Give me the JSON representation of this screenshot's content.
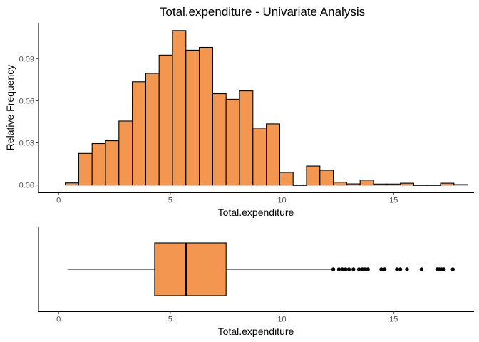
{
  "chart_data": [
    {
      "type": "histogram",
      "title": "Total.expenditure - Univariate Analysis",
      "xlabel": "Total.expenditure",
      "ylabel": "Relative Frequency",
      "xlim": [
        -0.9,
        18.6
      ],
      "ylim": [
        -0.0055,
        0.1155
      ],
      "x_ticks": [
        0,
        5,
        10,
        15
      ],
      "x_tick_labels": [
        "0",
        "5",
        "10",
        "15"
      ],
      "y_ticks": [
        0,
        0.03,
        0.06,
        0.09
      ],
      "y_tick_labels": [
        "0.00",
        "0.03",
        "0.06",
        "0.09"
      ],
      "grid": false,
      "bin_width": 0.6,
      "bins": [
        {
          "x0": 0.3,
          "x1": 0.9,
          "value": 0.0015
        },
        {
          "x0": 0.9,
          "x1": 1.5,
          "value": 0.0225
        },
        {
          "x0": 1.5,
          "x1": 2.1,
          "value": 0.0295
        },
        {
          "x0": 2.1,
          "x1": 2.7,
          "value": 0.0315
        },
        {
          "x0": 2.7,
          "x1": 3.3,
          "value": 0.0455
        },
        {
          "x0": 3.3,
          "x1": 3.9,
          "value": 0.0735
        },
        {
          "x0": 3.9,
          "x1": 4.5,
          "value": 0.0795
        },
        {
          "x0": 4.5,
          "x1": 5.1,
          "value": 0.0925
        },
        {
          "x0": 5.1,
          "x1": 5.7,
          "value": 0.11
        },
        {
          "x0": 5.7,
          "x1": 6.3,
          "value": 0.096
        },
        {
          "x0": 6.3,
          "x1": 6.9,
          "value": 0.098
        },
        {
          "x0": 6.9,
          "x1": 7.5,
          "value": 0.065
        },
        {
          "x0": 7.5,
          "x1": 8.1,
          "value": 0.061
        },
        {
          "x0": 8.1,
          "x1": 8.7,
          "value": 0.067
        },
        {
          "x0": 8.7,
          "x1": 9.3,
          "value": 0.0405
        },
        {
          "x0": 9.3,
          "x1": 9.9,
          "value": 0.0435
        },
        {
          "x0": 9.9,
          "x1": 10.5,
          "value": 0.009
        },
        {
          "x0": 10.5,
          "x1": 11.1,
          "value": 0.0
        },
        {
          "x0": 11.1,
          "x1": 11.7,
          "value": 0.0135
        },
        {
          "x0": 11.7,
          "x1": 12.3,
          "value": 0.0105
        },
        {
          "x0": 12.3,
          "x1": 12.9,
          "value": 0.002
        },
        {
          "x0": 12.9,
          "x1": 13.5,
          "value": 0.0008
        },
        {
          "x0": 13.5,
          "x1": 14.1,
          "value": 0.0035
        },
        {
          "x0": 14.1,
          "x1": 14.7,
          "value": 0.0007
        },
        {
          "x0": 14.7,
          "x1": 15.3,
          "value": 0.0007
        },
        {
          "x0": 15.3,
          "x1": 15.9,
          "value": 0.0013
        },
        {
          "x0": 15.9,
          "x1": 16.5,
          "value": 0.0
        },
        {
          "x0": 16.5,
          "x1": 17.1,
          "value": 0.0
        },
        {
          "x0": 17.1,
          "x1": 17.7,
          "value": 0.0013
        },
        {
          "x0": 17.7,
          "x1": 18.3,
          "value": 0.0003
        }
      ],
      "colors": {
        "fill": "#F29650",
        "stroke": "#000000"
      }
    },
    {
      "type": "boxplot",
      "xlabel": "Total.expenditure",
      "xlim": [
        -0.9,
        18.6
      ],
      "x_ticks": [
        0,
        5,
        10,
        15
      ],
      "x_tick_labels": [
        "0",
        "5",
        "10",
        "15"
      ],
      "grid": false,
      "whisker_low": 0.4,
      "q1": 4.3,
      "median": 5.7,
      "q3": 7.5,
      "whisker_high": 12.2,
      "outliers": [
        12.3,
        12.55,
        12.7,
        12.85,
        13.0,
        13.2,
        13.45,
        13.6,
        13.68,
        13.75,
        13.85,
        14.45,
        14.6,
        15.15,
        15.3,
        15.6,
        16.25,
        16.95,
        17.05,
        17.15,
        17.25,
        17.65
      ],
      "colors": {
        "fill": "#F29650",
        "stroke": "#000000",
        "outlier": "#000000"
      }
    }
  ]
}
